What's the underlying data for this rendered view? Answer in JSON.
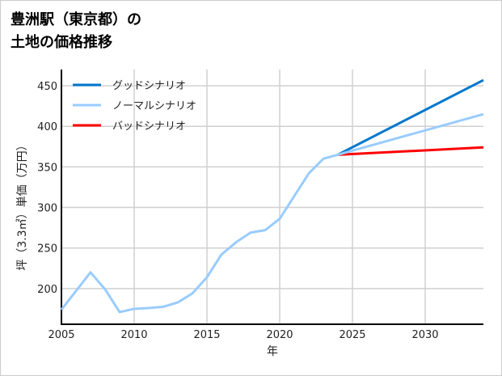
{
  "chart_data": {
    "type": "line",
    "title_lines": [
      "豊洲駅（東京都）の",
      "土地の価格推移"
    ],
    "xlabel": "年",
    "ylabel": "坪（3.3㎡）単価（万円）",
    "xlim": [
      2005,
      2034
    ],
    "ylim": [
      156,
      470
    ],
    "xticks": [
      2005,
      2010,
      2015,
      2020,
      2025,
      2030
    ],
    "yticks": [
      200,
      250,
      300,
      350,
      400,
      450
    ],
    "grid": true,
    "legend_position": "top-left",
    "series": [
      {
        "name": "グッドシナリオ",
        "color": "#0077cc",
        "x": [
          2024,
          2034
        ],
        "y": [
          365,
          457
        ]
      },
      {
        "name": "ノーマルシナリオ",
        "color": "#99ccff",
        "x": [
          2005,
          2006,
          2007,
          2008,
          2009,
          2010,
          2011,
          2012,
          2013,
          2014,
          2015,
          2016,
          2017,
          2018,
          2019,
          2020,
          2021,
          2022,
          2023,
          2024,
          2034
        ],
        "y": [
          174,
          197,
          220,
          199,
          171,
          175,
          176,
          177.5,
          183,
          194,
          214,
          242,
          257,
          269,
          272,
          286,
          314,
          342,
          360,
          365,
          415
        ]
      },
      {
        "name": "バッドシナリオ",
        "color": "#ff0000",
        "x": [
          2024,
          2034
        ],
        "y": [
          365,
          374
        ]
      }
    ]
  }
}
